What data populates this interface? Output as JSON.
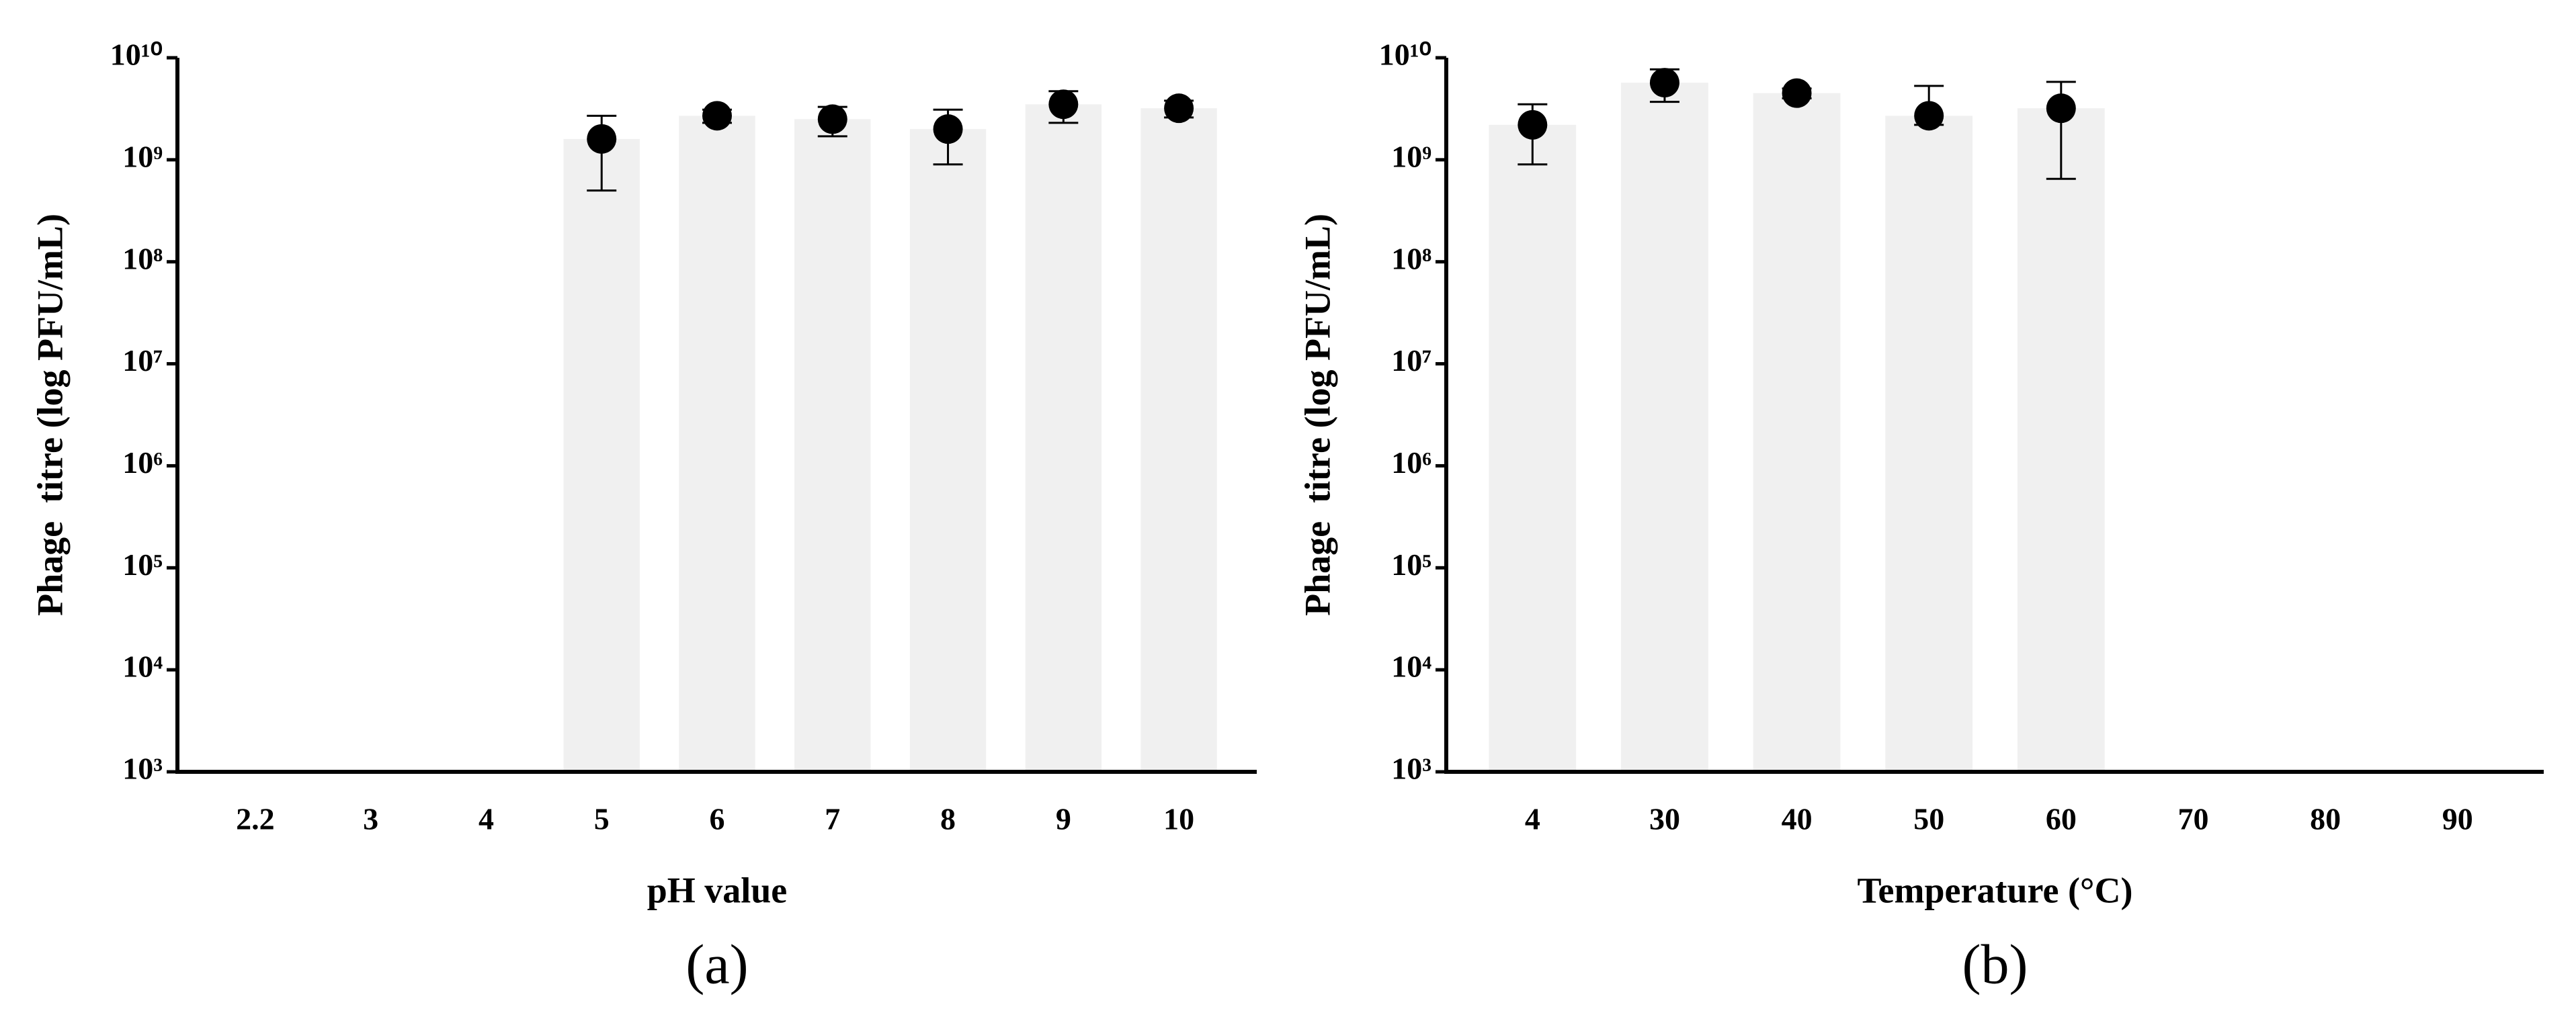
{
  "chart_data": [
    {
      "type": "bar",
      "panel_label": "(a)",
      "x_label": "pH value",
      "y_label": "Phage  titre (log PFU/mL)",
      "categories": [
        "2.2",
        "3",
        "4",
        "5",
        "6",
        "7",
        "8",
        "9",
        "10"
      ],
      "values": [
        null,
        null,
        null,
        1600000000,
        2700000000,
        2500000000,
        2000000000,
        3500000000,
        3200000000
      ],
      "error_plus": [
        null,
        null,
        null,
        1100000000,
        400000000,
        800000000,
        1100000000,
        1200000000,
        600000000
      ],
      "error_minus": [
        null,
        null,
        null,
        1100000000,
        400000000,
        800000000,
        1100000000,
        1200000000,
        600000000
      ],
      "color": "#f0f0f0",
      "marker_color": "#000000",
      "log_y": true,
      "ylim": [
        1000,
        10000000000
      ],
      "yticks": [
        {
          "value": 1000,
          "label": "10³"
        },
        {
          "value": 10000,
          "label": "10⁴"
        },
        {
          "value": 100000,
          "label": "10⁵"
        },
        {
          "value": 1000000,
          "label": "10⁶"
        },
        {
          "value": 10000000,
          "label": "10⁷"
        },
        {
          "value": 100000000,
          "label": "10⁸"
        },
        {
          "value": 1000000000,
          "label": "10⁹"
        },
        {
          "value": 10000000000,
          "label": "10¹⁰"
        }
      ]
    },
    {
      "type": "bar",
      "panel_label": "(b)",
      "x_label": "Temperature (°C)",
      "y_label": "Phage  titre (log PFU/mL)",
      "categories": [
        "4",
        "30",
        "40",
        "50",
        "60",
        "70",
        "80",
        "90"
      ],
      "values": [
        2200000000,
        5700000000,
        4500000000,
        2700000000,
        3200000000,
        null,
        null,
        null
      ],
      "error_plus": [
        1300000000,
        2000000000,
        500000000,
        2600000000,
        2600000000,
        null,
        null,
        null
      ],
      "error_minus": [
        1300000000,
        2000000000,
        500000000,
        500000000,
        2550000000,
        null,
        null,
        null
      ],
      "color": "#f0f0f0",
      "marker_color": "#000000",
      "log_y": true,
      "ylim": [
        1000,
        10000000000
      ],
      "yticks": [
        {
          "value": 1000,
          "label": "10³"
        },
        {
          "value": 10000,
          "label": "10⁴"
        },
        {
          "value": 100000,
          "label": "10⁵"
        },
        {
          "value": 1000000,
          "label": "10⁶"
        },
        {
          "value": 10000000,
          "label": "10⁷"
        },
        {
          "value": 100000000,
          "label": "10⁸"
        },
        {
          "value": 1000000000,
          "label": "10⁹"
        },
        {
          "value": 10000000000,
          "label": "10¹⁰"
        }
      ]
    }
  ]
}
